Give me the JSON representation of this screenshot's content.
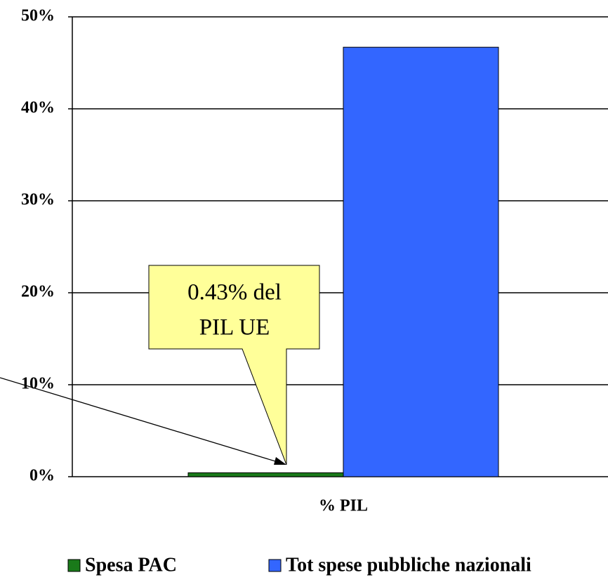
{
  "chart_data": {
    "type": "bar",
    "categories": [
      "% PIL"
    ],
    "series": [
      {
        "name": "Spesa PAC",
        "color": "#1a7a1a",
        "values": [
          0.43
        ]
      },
      {
        "name": "Tot spese pubbliche nazionali",
        "color": "#3366ff",
        "values": [
          46.7
        ]
      }
    ],
    "ylim": [
      0,
      50
    ],
    "yticks": [
      {
        "value": 0,
        "label": "0%"
      },
      {
        "value": 10,
        "label": "10%"
      },
      {
        "value": 20,
        "label": "20%"
      },
      {
        "value": 30,
        "label": "30%"
      },
      {
        "value": 40,
        "label": "40%"
      },
      {
        "value": 50,
        "label": "50%"
      }
    ],
    "grid": true,
    "legend": "bottom",
    "annotation": [
      "0.43% del",
      "PIL UE"
    ]
  }
}
